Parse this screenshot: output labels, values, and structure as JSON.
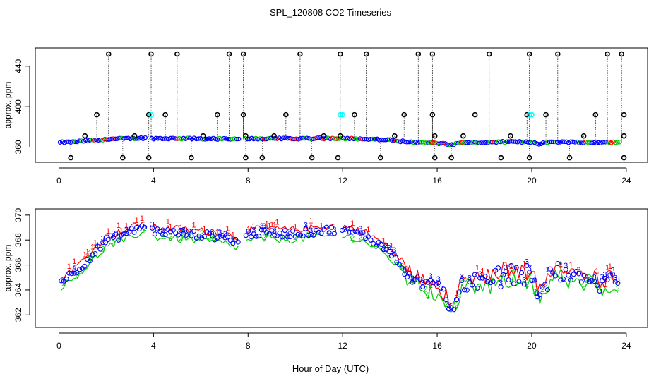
{
  "figure": {
    "title": "SPL_120808  CO2 Timeseries",
    "xlabel": "Hour of Day (UTC)"
  },
  "chart_data": [
    {
      "type": "scatter",
      "panel": "top",
      "ylabel": "approx. ppm",
      "xlim": [
        -1,
        24.9
      ],
      "ylim": [
        345,
        458
      ],
      "xticks": [
        0,
        4,
        8,
        12,
        16,
        20,
        24
      ],
      "yticks": [
        360,
        400,
        440
      ],
      "colors": {
        "ch1": "#ff0000",
        "ch2": "#00cc00",
        "ch3": "#0000ff",
        "points": "#0000ff",
        "outlier": "#000000",
        "flag": "#00ffff"
      },
      "outliers_high": [
        2.1,
        3.9,
        5.0,
        7.2,
        7.8,
        10.2,
        11.9,
        13.0,
        15.2,
        15.8,
        18.2,
        19.9,
        21.1,
        23.2,
        23.8
      ],
      "outliers_mid": [
        1.6,
        3.8,
        4.5,
        6.7,
        7.8,
        9.6,
        12.5,
        14.6,
        15.8,
        17.6,
        19.8,
        20.6,
        22.7,
        23.9
      ],
      "outliers_low": [
        0.5,
        2.7,
        3.8,
        5.6,
        7.9,
        8.6,
        10.7,
        11.8,
        13.6,
        15.9,
        16.6,
        18.7,
        19.9,
        21.6,
        23.9
      ],
      "outliers_mild": [
        1.1,
        3.2,
        6.1,
        7.9,
        9.1,
        11.2,
        11.9,
        14.2,
        15.9,
        17.1,
        19.1,
        22.2,
        23.9
      ],
      "flags_cyan": [
        3.9,
        11.9,
        12.0,
        19.9,
        20.0
      ],
      "series_profile": [
        [
          0,
          364.5
        ],
        [
          0.5,
          365.1
        ],
        [
          1,
          365.9
        ],
        [
          2,
          367.8
        ],
        [
          3,
          368.5
        ],
        [
          3.5,
          369.0
        ],
        [
          4,
          368.6
        ],
        [
          6,
          368.3
        ],
        [
          7,
          368.1
        ],
        [
          7.6,
          367.7
        ],
        [
          8,
          368.4
        ],
        [
          10,
          368.4
        ],
        [
          11.5,
          368.7
        ],
        [
          12,
          368.7
        ],
        [
          13,
          368.2
        ],
        [
          14,
          366.9
        ],
        [
          15,
          364.8
        ],
        [
          16,
          364.0
        ],
        [
          16.6,
          362.5
        ],
        [
          17,
          364.3
        ],
        [
          18,
          364.5
        ],
        [
          19,
          365.2
        ],
        [
          20,
          365.1
        ],
        [
          20.3,
          363.5
        ],
        [
          21,
          365.4
        ],
        [
          22,
          364.8
        ],
        [
          23,
          364.4
        ],
        [
          23.7,
          364.8
        ]
      ]
    },
    {
      "type": "scatter",
      "panel": "bottom",
      "ylabel": "approx. ppm",
      "xlim": [
        -1,
        24.9
      ],
      "ylim": [
        361,
        370.5
      ],
      "xticks": [
        0,
        4,
        8,
        12,
        16,
        20,
        24
      ],
      "yticks": [
        362,
        364,
        366,
        368,
        370
      ],
      "series": [
        {
          "name": "1",
          "color": "#ff0000",
          "offset": 0.55
        },
        {
          "name": "2",
          "color": "#00cc00",
          "offset": -0.45
        },
        {
          "name": "3",
          "color": "#0000ff",
          "offset": 0.15
        }
      ],
      "profile": [
        [
          0,
          364.5
        ],
        [
          0.5,
          365.1
        ],
        [
          1,
          365.9
        ],
        [
          2,
          367.8
        ],
        [
          3,
          368.5
        ],
        [
          3.5,
          369.0
        ],
        [
          4,
          368.6
        ],
        [
          6,
          368.3
        ],
        [
          7,
          368.1
        ],
        [
          7.6,
          367.7
        ],
        [
          8,
          368.4
        ],
        [
          10,
          368.4
        ],
        [
          11.5,
          368.7
        ],
        [
          12,
          368.7
        ],
        [
          13,
          368.2
        ],
        [
          14,
          366.9
        ],
        [
          15,
          364.8
        ],
        [
          16,
          364.0
        ],
        [
          16.6,
          362.5
        ],
        [
          17,
          364.3
        ],
        [
          18,
          364.5
        ],
        [
          19,
          365.2
        ],
        [
          20,
          365.1
        ],
        [
          20.3,
          363.5
        ],
        [
          21,
          365.4
        ],
        [
          22,
          364.8
        ],
        [
          23,
          364.4
        ],
        [
          23.7,
          364.8
        ]
      ]
    }
  ]
}
